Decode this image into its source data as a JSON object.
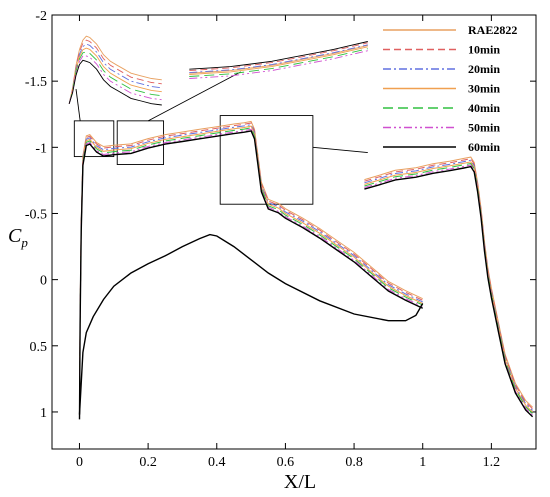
{
  "chart_data": {
    "type": "line",
    "xlabel": "X/L",
    "ylabel": "C",
    "ylabel_sub": "p",
    "xlim": [
      -0.08,
      1.33
    ],
    "ylim": [
      1.28,
      -2.0
    ],
    "y_inverted": true,
    "xticks": [
      0,
      0.2,
      0.4,
      0.6,
      0.8,
      1,
      1.2
    ],
    "xtick_labels": [
      "0",
      "0.2",
      "0.4",
      "0.6",
      "0.8",
      "1",
      "1.2"
    ],
    "yticks": [
      -2,
      -1.5,
      -1,
      -0.5,
      0,
      0.5,
      1
    ],
    "ytick_labels": [
      "-2",
      "-1.5",
      "-1",
      "-0.5",
      "0",
      "0.5",
      "1"
    ],
    "grid": false,
    "legend_position": "top-right",
    "series": [
      {
        "name": "RAE2822",
        "color": "#e8a060",
        "dash": "solid"
      },
      {
        "name": "10min",
        "color": "#e06060",
        "dash": "dashed"
      },
      {
        "name": "20min",
        "color": "#6070e0",
        "dash": "dashdot"
      },
      {
        "name": "30min",
        "color": "#f0a050",
        "dash": "solid"
      },
      {
        "name": "40min",
        "color": "#30c040",
        "dash": "longdash"
      },
      {
        "name": "50min",
        "color": "#d050d0",
        "dash": "dashdotdot"
      },
      {
        "name": "60min",
        "color": "#000000",
        "dash": "solid"
      }
    ],
    "upper_surface": {
      "x": [
        0.0,
        0.002,
        0.005,
        0.01,
        0.02,
        0.03,
        0.05,
        0.07,
        0.1,
        0.15,
        0.2,
        0.25,
        0.3,
        0.35,
        0.4,
        0.45,
        0.48,
        0.5,
        0.51,
        0.52,
        0.53,
        0.55,
        0.58,
        0.6,
        0.65,
        0.7,
        0.75,
        0.8,
        0.85,
        0.9,
        0.95,
        1.0
      ],
      "y": [
        1.02,
        0.3,
        -0.4,
        -0.9,
        -1.05,
        -1.06,
        -1.0,
        -0.97,
        -0.98,
        -0.99,
        -1.03,
        -1.06,
        -1.08,
        -1.1,
        -1.12,
        -1.14,
        -1.15,
        -1.16,
        -1.1,
        -0.9,
        -0.7,
        -0.57,
        -0.54,
        -0.5,
        -0.43,
        -0.35,
        -0.26,
        -0.17,
        -0.06,
        0.05,
        0.12,
        0.18
      ]
    },
    "lower_surface": {
      "x": [
        0.0,
        0.01,
        0.02,
        0.04,
        0.07,
        0.1,
        0.15,
        0.2,
        0.25,
        0.3,
        0.35,
        0.38,
        0.4,
        0.45,
        0.5,
        0.55,
        0.6,
        0.7,
        0.8,
        0.9,
        0.95,
        0.98,
        1.0
      ],
      "y": [
        1.02,
        0.55,
        0.4,
        0.28,
        0.15,
        0.05,
        -0.05,
        -0.12,
        -0.18,
        -0.25,
        -0.31,
        -0.34,
        -0.33,
        -0.25,
        -0.15,
        -0.05,
        0.03,
        0.16,
        0.26,
        0.31,
        0.31,
        0.27,
        0.18
      ]
    },
    "detail_curve": {
      "x": [
        0.83,
        0.87,
        0.92,
        0.98,
        1.03,
        1.08,
        1.12,
        1.14,
        1.15,
        1.16,
        1.17,
        1.18,
        1.19,
        1.2,
        1.22,
        1.24,
        1.27,
        1.3,
        1.32
      ],
      "y": [
        -0.72,
        -0.75,
        -0.79,
        -0.81,
        -0.84,
        -0.86,
        -0.88,
        -0.89,
        -0.85,
        -0.7,
        -0.5,
        -0.25,
        -0.05,
        0.1,
        0.35,
        0.6,
        0.82,
        0.95,
        1.0
      ]
    },
    "inset_left": {
      "x": [
        -0.03,
        -0.02,
        -0.01,
        0.0,
        0.01,
        0.02,
        0.03,
        0.05,
        0.07,
        0.09,
        0.11,
        0.13,
        0.15,
        0.18,
        0.21,
        0.24
      ],
      "offsets": [
        0.0,
        0.03,
        0.06,
        0.09,
        0.12,
        0.15,
        0.19
      ],
      "y": [
        -1.33,
        -1.45,
        -1.62,
        -1.74,
        -1.81,
        -1.84,
        -1.83,
        -1.78,
        -1.7,
        -1.65,
        -1.62,
        -1.59,
        -1.56,
        -1.54,
        -1.52,
        -1.51
      ]
    },
    "inset_mid": {
      "x": [
        0.32,
        0.38,
        0.44,
        0.5,
        0.56,
        0.62,
        0.68,
        0.74,
        0.79,
        0.84
      ],
      "offsets": [
        0.02,
        0.0,
        0.015,
        0.03,
        0.045,
        0.06,
        -0.01
      ],
      "y": [
        -1.58,
        -1.59,
        -1.6,
        -1.62,
        -1.64,
        -1.67,
        -1.7,
        -1.73,
        -1.76,
        -1.79
      ]
    }
  }
}
